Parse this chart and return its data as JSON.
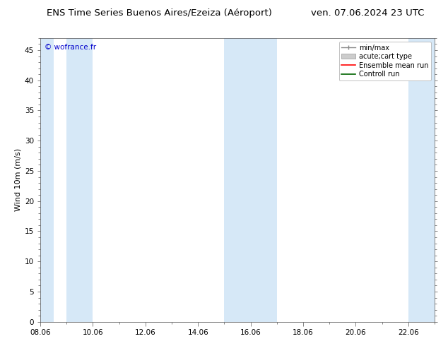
{
  "title_left": "ENS Time Series Buenos Aires/Ezeiza (Aéroport)",
  "title_right": "ven. 07.06.2024 23 UTC",
  "ylabel": "Wind 10m (m/s)",
  "watermark": "© wofrance.fr",
  "xlim": [
    0,
    15
  ],
  "ylim": [
    0,
    47
  ],
  "yticks": [
    0,
    5,
    10,
    15,
    20,
    25,
    30,
    35,
    40,
    45
  ],
  "xtick_labels": [
    "08.06",
    "10.06",
    "12.06",
    "14.06",
    "16.06",
    "18.06",
    "20.06",
    "22.06"
  ],
  "xtick_positions": [
    0,
    2,
    4,
    6,
    8,
    10,
    12,
    14
  ],
  "shaded_bands": [
    [
      0.0,
      0.5
    ],
    [
      1.0,
      2.0
    ],
    [
      7.0,
      8.0
    ],
    [
      8.0,
      9.0
    ],
    [
      14.0,
      15.0
    ]
  ],
  "band_color": "#d6e8f7",
  "background_color": "#ffffff",
  "legend_items": [
    {
      "label": "min/max",
      "color": "#aaaaaa",
      "type": "errorbar"
    },
    {
      "label": "acute;cart type",
      "color": "#cccccc",
      "type": "bar"
    },
    {
      "label": "Ensemble mean run",
      "color": "#ff0000",
      "type": "line"
    },
    {
      "label": "Controll run",
      "color": "#006400",
      "type": "line"
    }
  ],
  "title_fontsize": 9.5,
  "tick_fontsize": 7.5,
  "ylabel_fontsize": 8,
  "watermark_color": "#0000cc",
  "watermark_fontsize": 7.5,
  "legend_fontsize": 7
}
